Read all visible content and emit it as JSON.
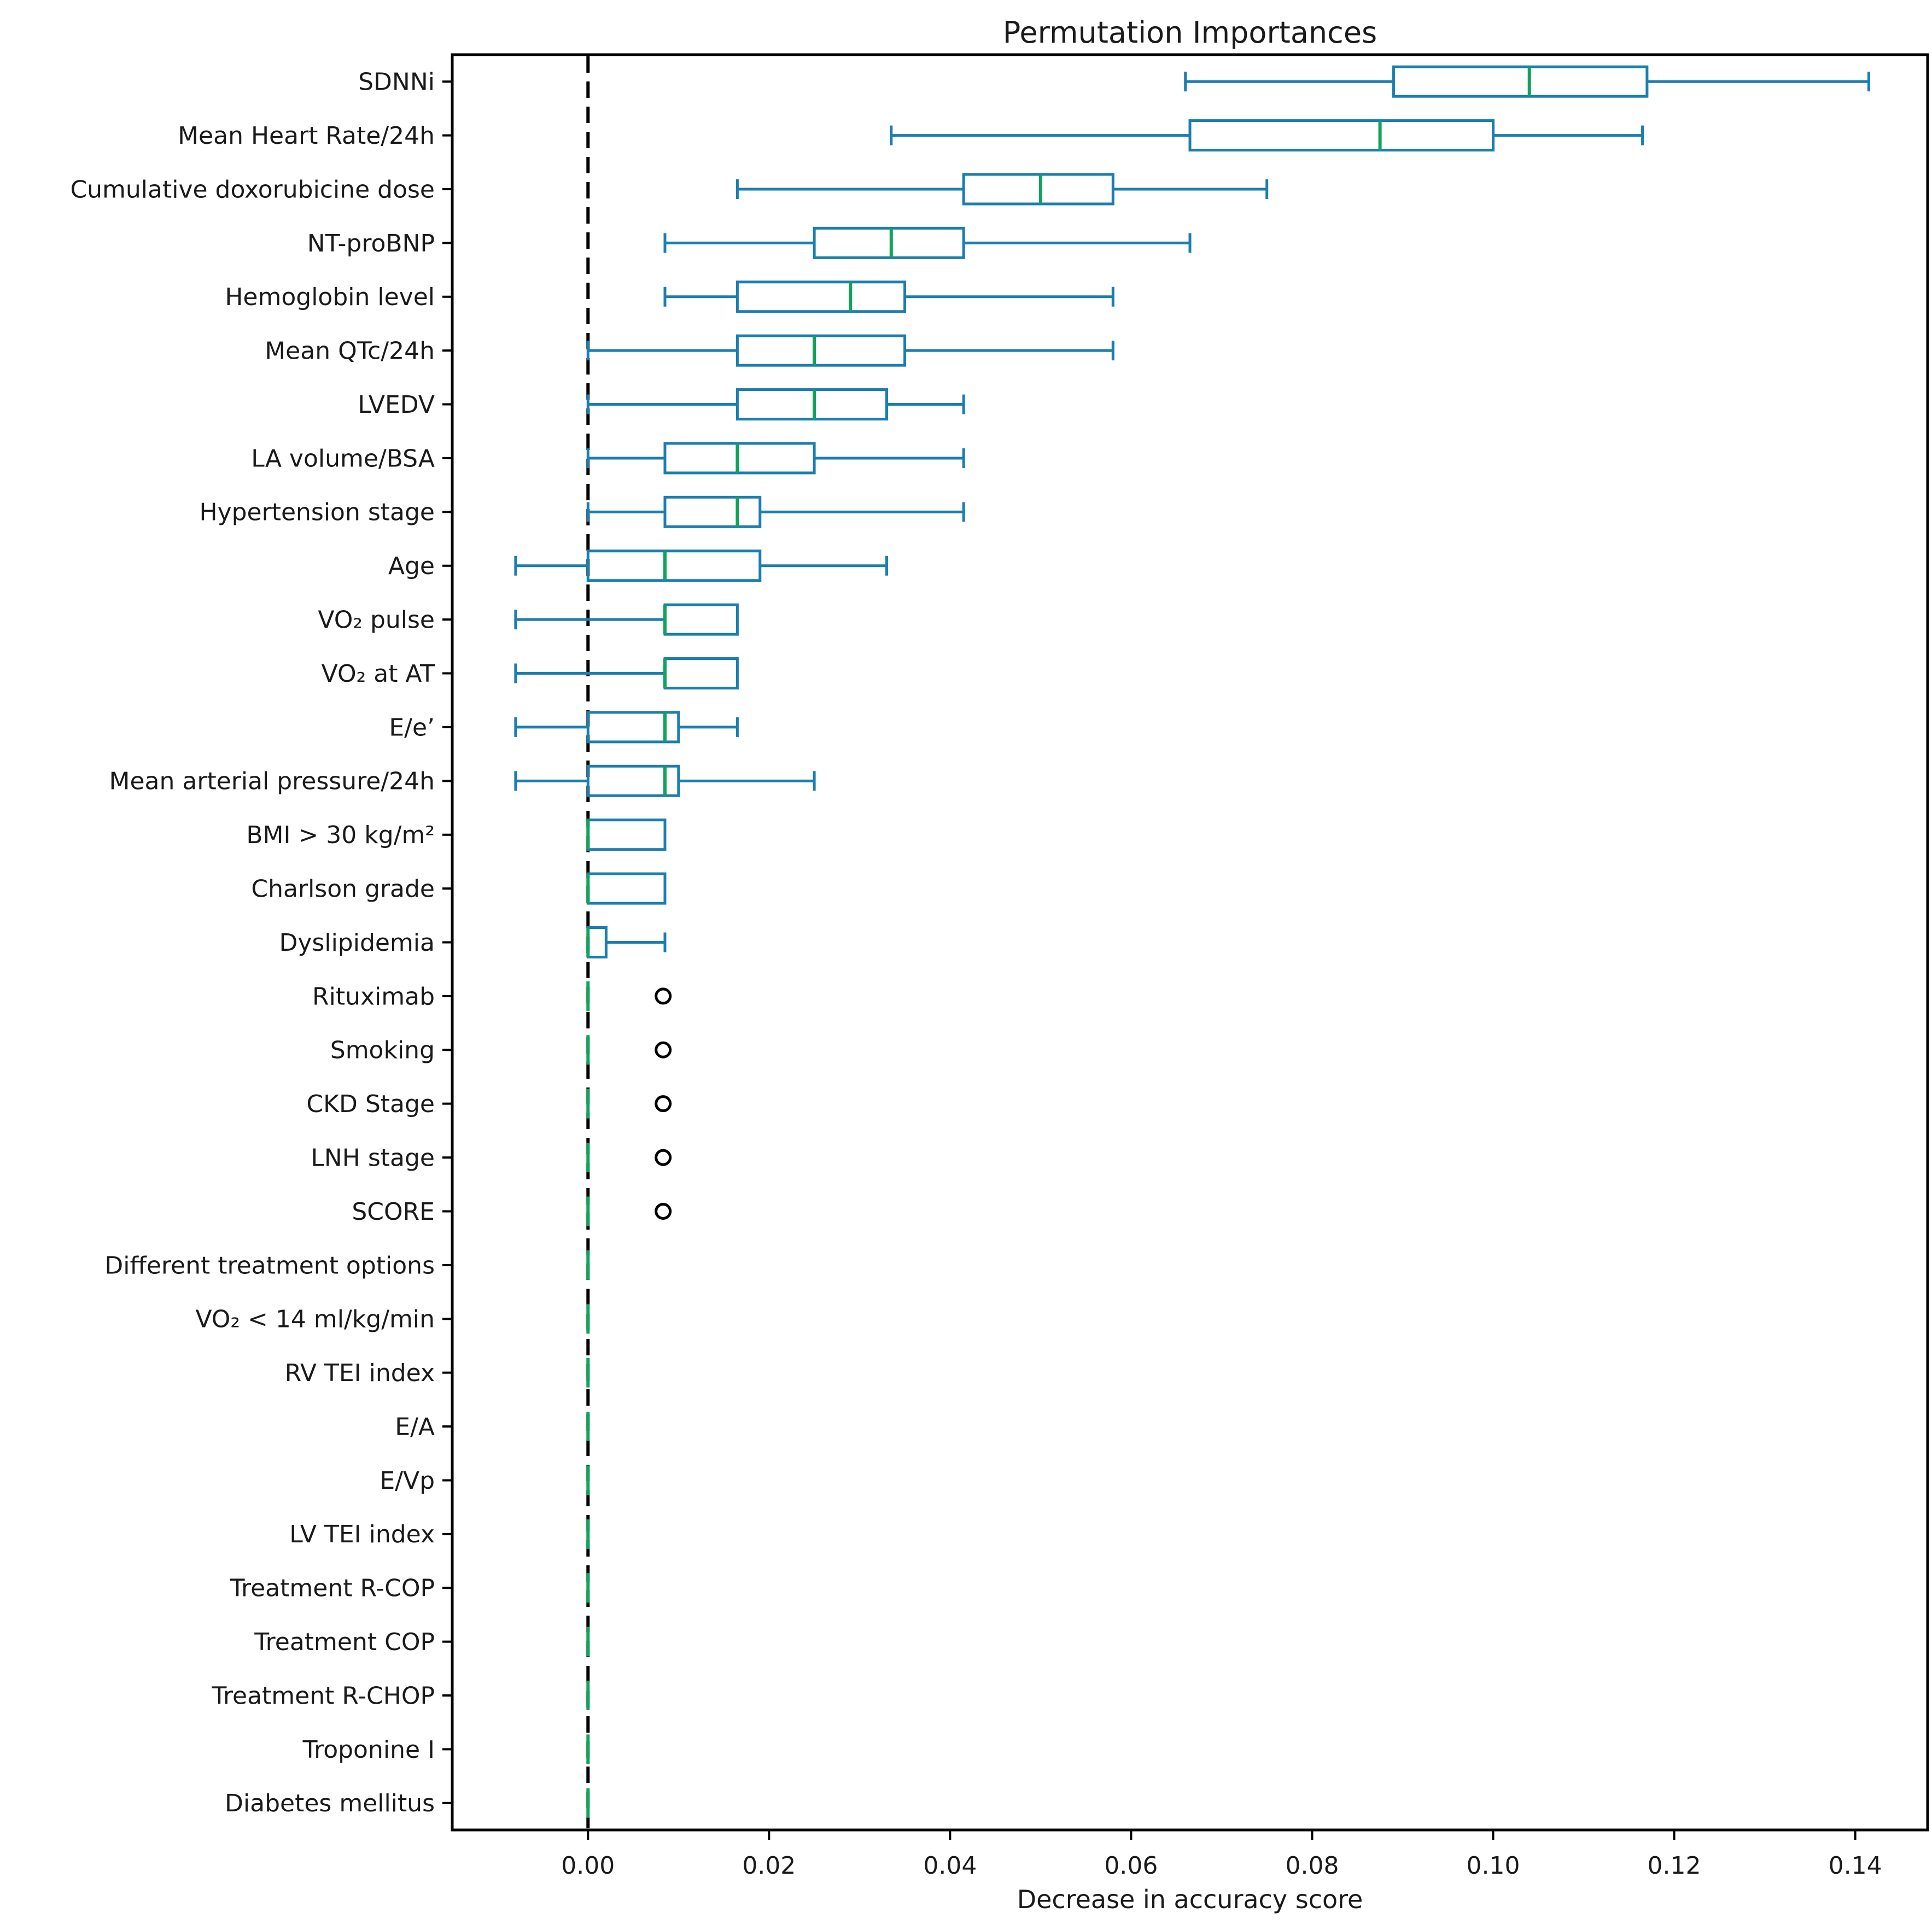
{
  "chart_data": {
    "type": "boxplot",
    "orientation": "horizontal",
    "title": "Permutation Importances",
    "xlabel": "Decrease in accuracy score",
    "ylabel": "",
    "xlim": [
      -0.015,
      0.148
    ],
    "x_ticks": [
      0.0,
      0.02,
      0.04,
      0.06,
      0.08,
      0.1,
      0.12,
      0.14
    ],
    "x_tick_labels": [
      "0.00",
      "0.02",
      "0.04",
      "0.06",
      "0.08",
      "0.10",
      "0.12",
      "0.14"
    ],
    "grid": false,
    "legend": null,
    "zero_reference_line": {
      "value": 0.0,
      "style": "dashed",
      "color": "#000000"
    },
    "colors": {
      "box": "#1b7eb0",
      "whisker": "#1b7eb0",
      "median": "#10a35c",
      "flier": "#000000",
      "spine": "#000000",
      "text": "#1a1a1a",
      "background": "#ffffff"
    },
    "rows": [
      {
        "label": "SDNNi",
        "whisker_low": 0.066,
        "q1": 0.089,
        "median": 0.104,
        "q3": 0.117,
        "whisker_high": 0.1415,
        "fliers": []
      },
      {
        "label": "Mean Heart Rate/24h",
        "whisker_low": 0.0335,
        "q1": 0.0665,
        "median": 0.0875,
        "q3": 0.1,
        "whisker_high": 0.1165,
        "fliers": []
      },
      {
        "label": "Cumulative doxorubicine dose",
        "whisker_low": 0.0165,
        "q1": 0.0415,
        "median": 0.05,
        "q3": 0.058,
        "whisker_high": 0.075,
        "fliers": []
      },
      {
        "label": "NT-proBNP",
        "whisker_low": 0.0085,
        "q1": 0.025,
        "median": 0.0335,
        "q3": 0.0415,
        "whisker_high": 0.0665,
        "fliers": []
      },
      {
        "label": "Hemoglobin level",
        "whisker_low": 0.0085,
        "q1": 0.0165,
        "median": 0.029,
        "q3": 0.035,
        "whisker_high": 0.058,
        "fliers": []
      },
      {
        "label": "Mean QTc/24h",
        "whisker_low": 0.0,
        "q1": 0.0165,
        "median": 0.025,
        "q3": 0.035,
        "whisker_high": 0.058,
        "fliers": []
      },
      {
        "label": "LVEDV",
        "whisker_low": 0.0,
        "q1": 0.0165,
        "median": 0.025,
        "q3": 0.033,
        "whisker_high": 0.0415,
        "fliers": []
      },
      {
        "label": "LA volume/BSA",
        "whisker_low": 0.0,
        "q1": 0.0085,
        "median": 0.0165,
        "q3": 0.025,
        "whisker_high": 0.0415,
        "fliers": []
      },
      {
        "label": "Hypertension stage",
        "whisker_low": 0.0,
        "q1": 0.0085,
        "median": 0.0165,
        "q3": 0.019,
        "whisker_high": 0.0415,
        "fliers": []
      },
      {
        "label": "Age",
        "whisker_low": -0.008,
        "q1": 0.0,
        "median": 0.0085,
        "q3": 0.019,
        "whisker_high": 0.033,
        "fliers": []
      },
      {
        "label": "VO₂ pulse",
        "whisker_low": -0.008,
        "q1": 0.0085,
        "median": 0.0085,
        "q3": 0.0165,
        "whisker_high": 0.0165,
        "fliers": []
      },
      {
        "label": "VO₂ at AT",
        "whisker_low": -0.008,
        "q1": 0.0085,
        "median": 0.0085,
        "q3": 0.0165,
        "whisker_high": 0.0165,
        "fliers": []
      },
      {
        "label": "E/e’",
        "whisker_low": -0.008,
        "q1": 0.0,
        "median": 0.0085,
        "q3": 0.01,
        "whisker_high": 0.0165,
        "fliers": []
      },
      {
        "label": "Mean arterial pressure/24h",
        "whisker_low": -0.008,
        "q1": 0.0,
        "median": 0.0085,
        "q3": 0.01,
        "whisker_high": 0.025,
        "fliers": []
      },
      {
        "label": "BMI > 30 kg/m²",
        "whisker_low": 0.0,
        "q1": 0.0,
        "median": 0.0,
        "q3": 0.0085,
        "whisker_high": 0.0085,
        "fliers": []
      },
      {
        "label": "Charlson grade",
        "whisker_low": 0.0,
        "q1": 0.0,
        "median": 0.0,
        "q3": 0.0085,
        "whisker_high": 0.0085,
        "fliers": []
      },
      {
        "label": "Dyslipidemia",
        "whisker_low": 0.0,
        "q1": 0.0,
        "median": 0.0,
        "q3": 0.002,
        "whisker_high": 0.0085,
        "fliers": []
      },
      {
        "label": "Rituximab",
        "whisker_low": 0.0,
        "q1": 0.0,
        "median": 0.0,
        "q3": 0.0,
        "whisker_high": 0.0,
        "fliers": [
          0.0083
        ]
      },
      {
        "label": "Smoking",
        "whisker_low": 0.0,
        "q1": 0.0,
        "median": 0.0,
        "q3": 0.0,
        "whisker_high": 0.0,
        "fliers": [
          0.0083
        ]
      },
      {
        "label": "CKD Stage",
        "whisker_low": 0.0,
        "q1": 0.0,
        "median": 0.0,
        "q3": 0.0,
        "whisker_high": 0.0,
        "fliers": [
          0.0083
        ]
      },
      {
        "label": "LNH stage",
        "whisker_low": 0.0,
        "q1": 0.0,
        "median": 0.0,
        "q3": 0.0,
        "whisker_high": 0.0,
        "fliers": [
          0.0083
        ]
      },
      {
        "label": "SCORE",
        "whisker_low": 0.0,
        "q1": 0.0,
        "median": 0.0,
        "q3": 0.0,
        "whisker_high": 0.0,
        "fliers": [
          0.0083
        ]
      },
      {
        "label": "Different treatment options",
        "whisker_low": 0.0,
        "q1": 0.0,
        "median": 0.0,
        "q3": 0.0,
        "whisker_high": 0.0,
        "fliers": []
      },
      {
        "label": "VO₂ < 14 ml/kg/min",
        "whisker_low": 0.0,
        "q1": 0.0,
        "median": 0.0,
        "q3": 0.0,
        "whisker_high": 0.0,
        "fliers": []
      },
      {
        "label": "RV TEI index",
        "whisker_low": 0.0,
        "q1": 0.0,
        "median": 0.0,
        "q3": 0.0,
        "whisker_high": 0.0,
        "fliers": []
      },
      {
        "label": "E/A",
        "whisker_low": 0.0,
        "q1": 0.0,
        "median": 0.0,
        "q3": 0.0,
        "whisker_high": 0.0,
        "fliers": []
      },
      {
        "label": "E/Vp",
        "whisker_low": 0.0,
        "q1": 0.0,
        "median": 0.0,
        "q3": 0.0,
        "whisker_high": 0.0,
        "fliers": []
      },
      {
        "label": "LV TEI index",
        "whisker_low": 0.0,
        "q1": 0.0,
        "median": 0.0,
        "q3": 0.0,
        "whisker_high": 0.0,
        "fliers": []
      },
      {
        "label": "Treatment R-COP",
        "whisker_low": 0.0,
        "q1": 0.0,
        "median": 0.0,
        "q3": 0.0,
        "whisker_high": 0.0,
        "fliers": []
      },
      {
        "label": "Treatment COP",
        "whisker_low": 0.0,
        "q1": 0.0,
        "median": 0.0,
        "q3": 0.0,
        "whisker_high": 0.0,
        "fliers": []
      },
      {
        "label": "Treatment R-CHOP",
        "whisker_low": 0.0,
        "q1": 0.0,
        "median": 0.0,
        "q3": 0.0,
        "whisker_high": 0.0,
        "fliers": []
      },
      {
        "label": "Troponine I",
        "whisker_low": 0.0,
        "q1": 0.0,
        "median": 0.0,
        "q3": 0.0,
        "whisker_high": 0.0,
        "fliers": []
      },
      {
        "label": "Diabetes mellitus",
        "whisker_low": 0.0,
        "q1": 0.0,
        "median": 0.0,
        "q3": 0.0,
        "whisker_high": 0.0,
        "fliers": []
      }
    ]
  }
}
